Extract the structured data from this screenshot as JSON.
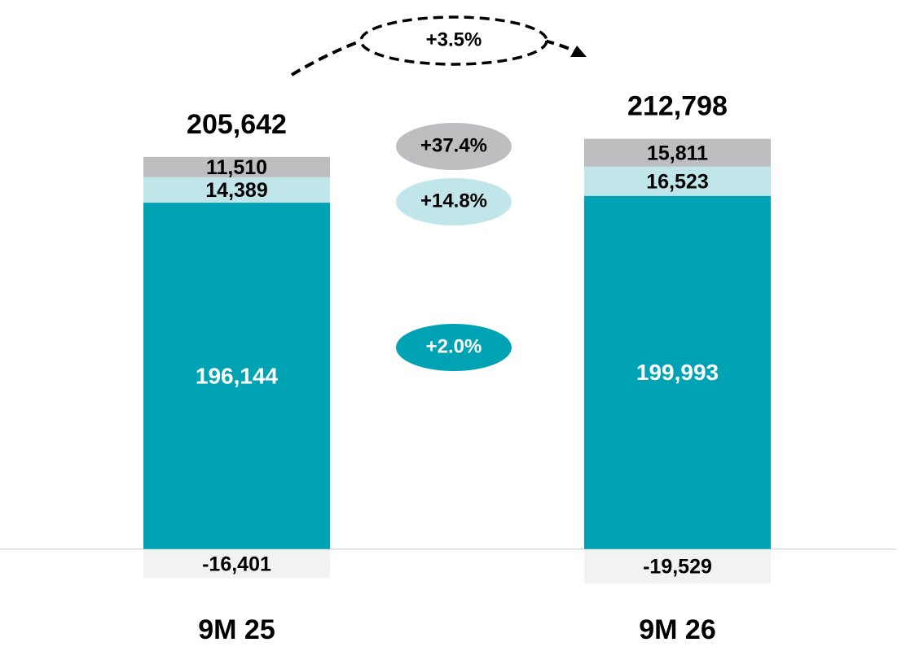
{
  "chart_data": {
    "type": "stacked_bar",
    "categories": [
      "9M 25",
      "9M 26"
    ],
    "ylim": [
      -30000,
      280000
    ],
    "series": [
      {
        "color": "#00a3b4",
        "values": [
          196144,
          199993
        ],
        "value_labels": [
          "196,144",
          "199,993"
        ],
        "growth": "+2.0%"
      },
      {
        "color": "#c0e6ea",
        "values": [
          14389,
          16523
        ],
        "value_labels": [
          "14,389",
          "16,523"
        ],
        "growth": "+14.8%"
      },
      {
        "color": "#bcbec0",
        "values": [
          11510,
          15811
        ],
        "value_labels": [
          "11,510",
          "15,811"
        ],
        "growth": "+37.4%"
      },
      {
        "color": "#f2f2f2",
        "values": [
          -16401,
          -19529
        ],
        "value_labels": [
          "-16,401",
          "-19,529"
        ]
      }
    ],
    "totals": [
      205642,
      212798
    ],
    "total_labels": [
      "205,642",
      "212,798"
    ],
    "total_growth": "+3.5%"
  }
}
